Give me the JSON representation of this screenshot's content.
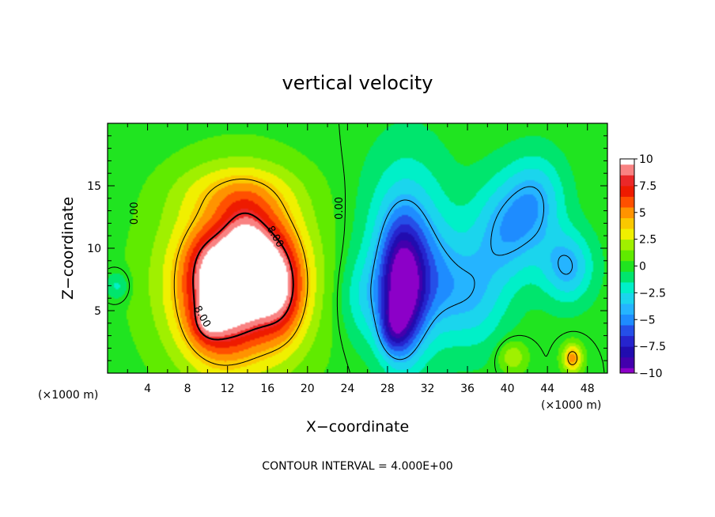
{
  "chart_data": {
    "type": "heatmap",
    "title": "vertical velocity",
    "xlabel": "X−coordinate",
    "ylabel": "Z−coordinate",
    "x_unit_left": "(×1000 m)",
    "x_unit_right": "(×1000 m)",
    "footer": "CONTOUR INTERVAL = 4.000E+00",
    "xlim": [
      0,
      50
    ],
    "ylim": [
      0,
      20
    ],
    "x_ticks": [
      {
        "v": 4,
        "label": "4"
      },
      {
        "v": 8,
        "label": "8"
      },
      {
        "v": 12,
        "label": "12"
      },
      {
        "v": 16,
        "label": "16"
      },
      {
        "v": 20,
        "label": "20"
      },
      {
        "v": 24,
        "label": "24"
      },
      {
        "v": 28,
        "label": "28"
      },
      {
        "v": 32,
        "label": "32"
      },
      {
        "v": 36,
        "label": "36"
      },
      {
        "v": 40,
        "label": "40"
      },
      {
        "v": 44,
        "label": "44"
      },
      {
        "v": 48,
        "label": "48"
      }
    ],
    "y_ticks": [
      {
        "v": 5,
        "label": "5"
      },
      {
        "v": 10,
        "label": "10"
      },
      {
        "v": 15,
        "label": "15"
      }
    ],
    "colorbar": {
      "min": -10,
      "max": 10,
      "ticks": [
        {
          "v": 10,
          "label": "10"
        },
        {
          "v": 7.5,
          "label": "7.5"
        },
        {
          "v": 5,
          "label": "5"
        },
        {
          "v": 2.5,
          "label": "2.5"
        },
        {
          "v": 0,
          "label": "0"
        },
        {
          "v": -2.5,
          "label": "−2.5"
        },
        {
          "v": -5,
          "label": "−5"
        },
        {
          "v": -7.5,
          "label": "−7.5"
        },
        {
          "v": -10,
          "label": "−10"
        }
      ],
      "stops": [
        {
          "v": -10,
          "color": "#8c00c8"
        },
        {
          "v": -8.5,
          "color": "#1e00a0"
        },
        {
          "v": -6.5,
          "color": "#2830dc"
        },
        {
          "v": -5,
          "color": "#1e8cff"
        },
        {
          "v": -3.5,
          "color": "#28c8ff"
        },
        {
          "v": -2,
          "color": "#00f0c8"
        },
        {
          "v": -0.5,
          "color": "#00e040"
        },
        {
          "v": 0.5,
          "color": "#40e800"
        },
        {
          "v": 2,
          "color": "#a0f000"
        },
        {
          "v": 3,
          "color": "#f0f000"
        },
        {
          "v": 4.5,
          "color": "#ffb400"
        },
        {
          "v": 6,
          "color": "#ff5000"
        },
        {
          "v": 7.5,
          "color": "#e60000"
        },
        {
          "v": 8.5,
          "color": "#f05050"
        },
        {
          "v": 9.3,
          "color": "#ffa0a0"
        },
        {
          "v": 10,
          "color": "#ffffff"
        }
      ]
    },
    "contour_labels": [
      {
        "x": 3.0,
        "y": 12.8,
        "text": "0.00"
      },
      {
        "x": 23.5,
        "y": 13.2,
        "text": "0.00"
      },
      {
        "x": 16.5,
        "y": 10.8,
        "text": "8.00"
      },
      {
        "x": 9.2,
        "y": 4.4,
        "text": "8.00"
      }
    ],
    "features": [
      {
        "x": 13,
        "y": 7.5,
        "sx": 5.0,
        "sy": 5.0,
        "a": 7
      },
      {
        "x": 11,
        "y": 5.5,
        "sx": 2.3,
        "sy": 3.0,
        "a": 5
      },
      {
        "x": 15.5,
        "y": 8,
        "sx": 2.3,
        "sy": 3.2,
        "a": 5
      },
      {
        "x": 13.5,
        "y": 10,
        "sx": 1.6,
        "sy": 2.5,
        "a": 3
      },
      {
        "x": 10,
        "y": 9,
        "sx": 1.6,
        "sy": 1.8,
        "a": 2
      },
      {
        "x": 17.5,
        "y": 6.5,
        "sx": 1.5,
        "sy": 2.5,
        "a": 3
      },
      {
        "x": 13,
        "y": 14.5,
        "sx": 4.0,
        "sy": 1.6,
        "a": 2
      },
      {
        "x": 29.5,
        "y": 6.5,
        "sx": 1.5,
        "sy": 3.6,
        "a": -8
      },
      {
        "x": 30,
        "y": 10,
        "sx": 3.0,
        "sy": 5.0,
        "a": -4
      },
      {
        "x": 28.5,
        "y": 3.5,
        "sx": 1.0,
        "sy": 1.4,
        "a": -3
      },
      {
        "x": 33,
        "y": 7,
        "sx": 2.5,
        "sy": 3.0,
        "a": -2.5
      },
      {
        "x": 37,
        "y": 6,
        "sx": 2.2,
        "sy": 3.0,
        "a": -2.5
      },
      {
        "x": 40,
        "y": 11.5,
        "sx": 2.5,
        "sy": 3.0,
        "a": -4
      },
      {
        "x": 43,
        "y": 14,
        "sx": 2.0,
        "sy": 2.5,
        "a": -3
      },
      {
        "x": 46,
        "y": 8.5,
        "sx": 1.8,
        "sy": 2.0,
        "a": -4
      },
      {
        "x": 25.5,
        "y": 6,
        "sx": 1.8,
        "sy": 2.5,
        "a": -2
      },
      {
        "x": 46.5,
        "y": 1.2,
        "sx": 0.7,
        "sy": 0.8,
        "a": 5
      },
      {
        "x": 40.5,
        "y": 1.3,
        "sx": 1.0,
        "sy": 0.9,
        "a": 2.5
      },
      {
        "x": 10,
        "y": 4,
        "sx": 1.0,
        "sy": 1.0,
        "a": 2
      },
      {
        "x": 1,
        "y": 7,
        "sx": 0.8,
        "sy": 0.8,
        "a": -2
      }
    ]
  }
}
